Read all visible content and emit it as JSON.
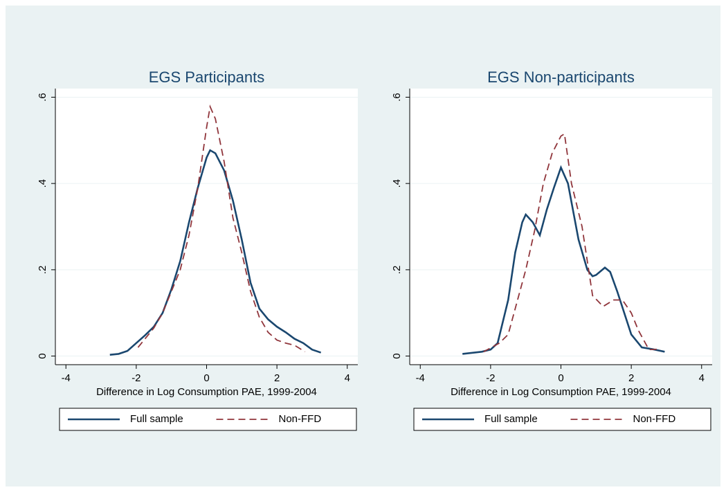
{
  "chart_data": [
    {
      "type": "line",
      "title": "EGS Participants",
      "xlabel": "Difference in Log Consumption PAE, 1999-2004",
      "xlim": [
        -4.3,
        4.3
      ],
      "xticks": [
        -4,
        -2,
        0,
        2,
        4
      ],
      "ylim": [
        -0.02,
        0.62
      ],
      "yticks": [
        0,
        {
          "value": 0.2,
          "label": ".2"
        },
        {
          "value": 0.4,
          "label": ".4"
        },
        {
          "value": 0.6,
          "label": ".6"
        }
      ],
      "grid": true,
      "legend": "bottom",
      "series": [
        {
          "name": "Full sample",
          "color": "#1a476f",
          "style": "solid",
          "x": [
            -2.75,
            -2.5,
            -2.25,
            -2,
            -1.75,
            -1.5,
            -1.25,
            -1,
            -0.75,
            -0.5,
            -0.25,
            0,
            0.1,
            0.25,
            0.5,
            0.75,
            1,
            1.25,
            1.5,
            1.75,
            2,
            2.25,
            2.5,
            2.75,
            3,
            3.25
          ],
          "values": [
            0.003,
            0.005,
            0.012,
            0.03,
            0.048,
            0.068,
            0.1,
            0.155,
            0.22,
            0.31,
            0.39,
            0.46,
            0.477,
            0.47,
            0.43,
            0.36,
            0.27,
            0.17,
            0.11,
            0.085,
            0.068,
            0.055,
            0.04,
            0.03,
            0.015,
            0.008
          ]
        },
        {
          "name": "Non-FFD",
          "color": "#90353b",
          "style": "dashed",
          "x": [
            -1.95,
            -1.75,
            -1.5,
            -1.25,
            -1,
            -0.75,
            -0.5,
            -0.25,
            0,
            0.1,
            0.25,
            0.5,
            0.75,
            1,
            1.25,
            1.5,
            1.75,
            2,
            2.25,
            2.5,
            2.8
          ],
          "values": [
            0.02,
            0.04,
            0.065,
            0.1,
            0.15,
            0.2,
            0.28,
            0.39,
            0.53,
            0.578,
            0.55,
            0.45,
            0.32,
            0.24,
            0.15,
            0.09,
            0.055,
            0.037,
            0.03,
            0.025,
            0.01
          ]
        }
      ]
    },
    {
      "type": "line",
      "title": "EGS Non-participants",
      "xlabel": "Difference in Log Consumption PAE, 1999-2004",
      "xlim": [
        -4.3,
        4.3
      ],
      "xticks": [
        -4,
        -2,
        0,
        2,
        4
      ],
      "ylim": [
        -0.02,
        0.62
      ],
      "yticks": [
        0,
        {
          "value": 0.2,
          "label": ".2"
        },
        {
          "value": 0.4,
          "label": ".4"
        },
        {
          "value": 0.6,
          "label": ".6"
        }
      ],
      "grid": true,
      "legend": "bottom",
      "series": [
        {
          "name": "Full sample",
          "color": "#1a476f",
          "style": "solid",
          "x": [
            -2.8,
            -2.25,
            -2,
            -1.8,
            -1.5,
            -1.3,
            -1.1,
            -1,
            -0.8,
            -0.6,
            -0.4,
            -0.2,
            0,
            0.2,
            0.5,
            0.75,
            0.9,
            1,
            1.25,
            1.4,
            1.6,
            1.8,
            2,
            2.3,
            2.6,
            2.95
          ],
          "values": [
            0.005,
            0.01,
            0.015,
            0.03,
            0.13,
            0.24,
            0.31,
            0.328,
            0.31,
            0.28,
            0.34,
            0.39,
            0.437,
            0.4,
            0.27,
            0.2,
            0.185,
            0.188,
            0.205,
            0.195,
            0.15,
            0.1,
            0.05,
            0.02,
            0.016,
            0.01
          ]
        },
        {
          "name": "Non-FFD",
          "color": "#90353b",
          "style": "dashed",
          "x": [
            -2.2,
            -1.75,
            -1.5,
            -1,
            -0.75,
            -0.5,
            -0.25,
            0,
            0.1,
            0.3,
            0.6,
            0.9,
            1.2,
            1.5,
            1.75,
            2,
            2.2,
            2.5,
            2.8
          ],
          "values": [
            0.01,
            0.03,
            0.05,
            0.2,
            0.29,
            0.4,
            0.47,
            0.51,
            0.515,
            0.4,
            0.3,
            0.14,
            0.115,
            0.13,
            0.13,
            0.1,
            0.06,
            0.015,
            0.016
          ]
        }
      ]
    }
  ]
}
